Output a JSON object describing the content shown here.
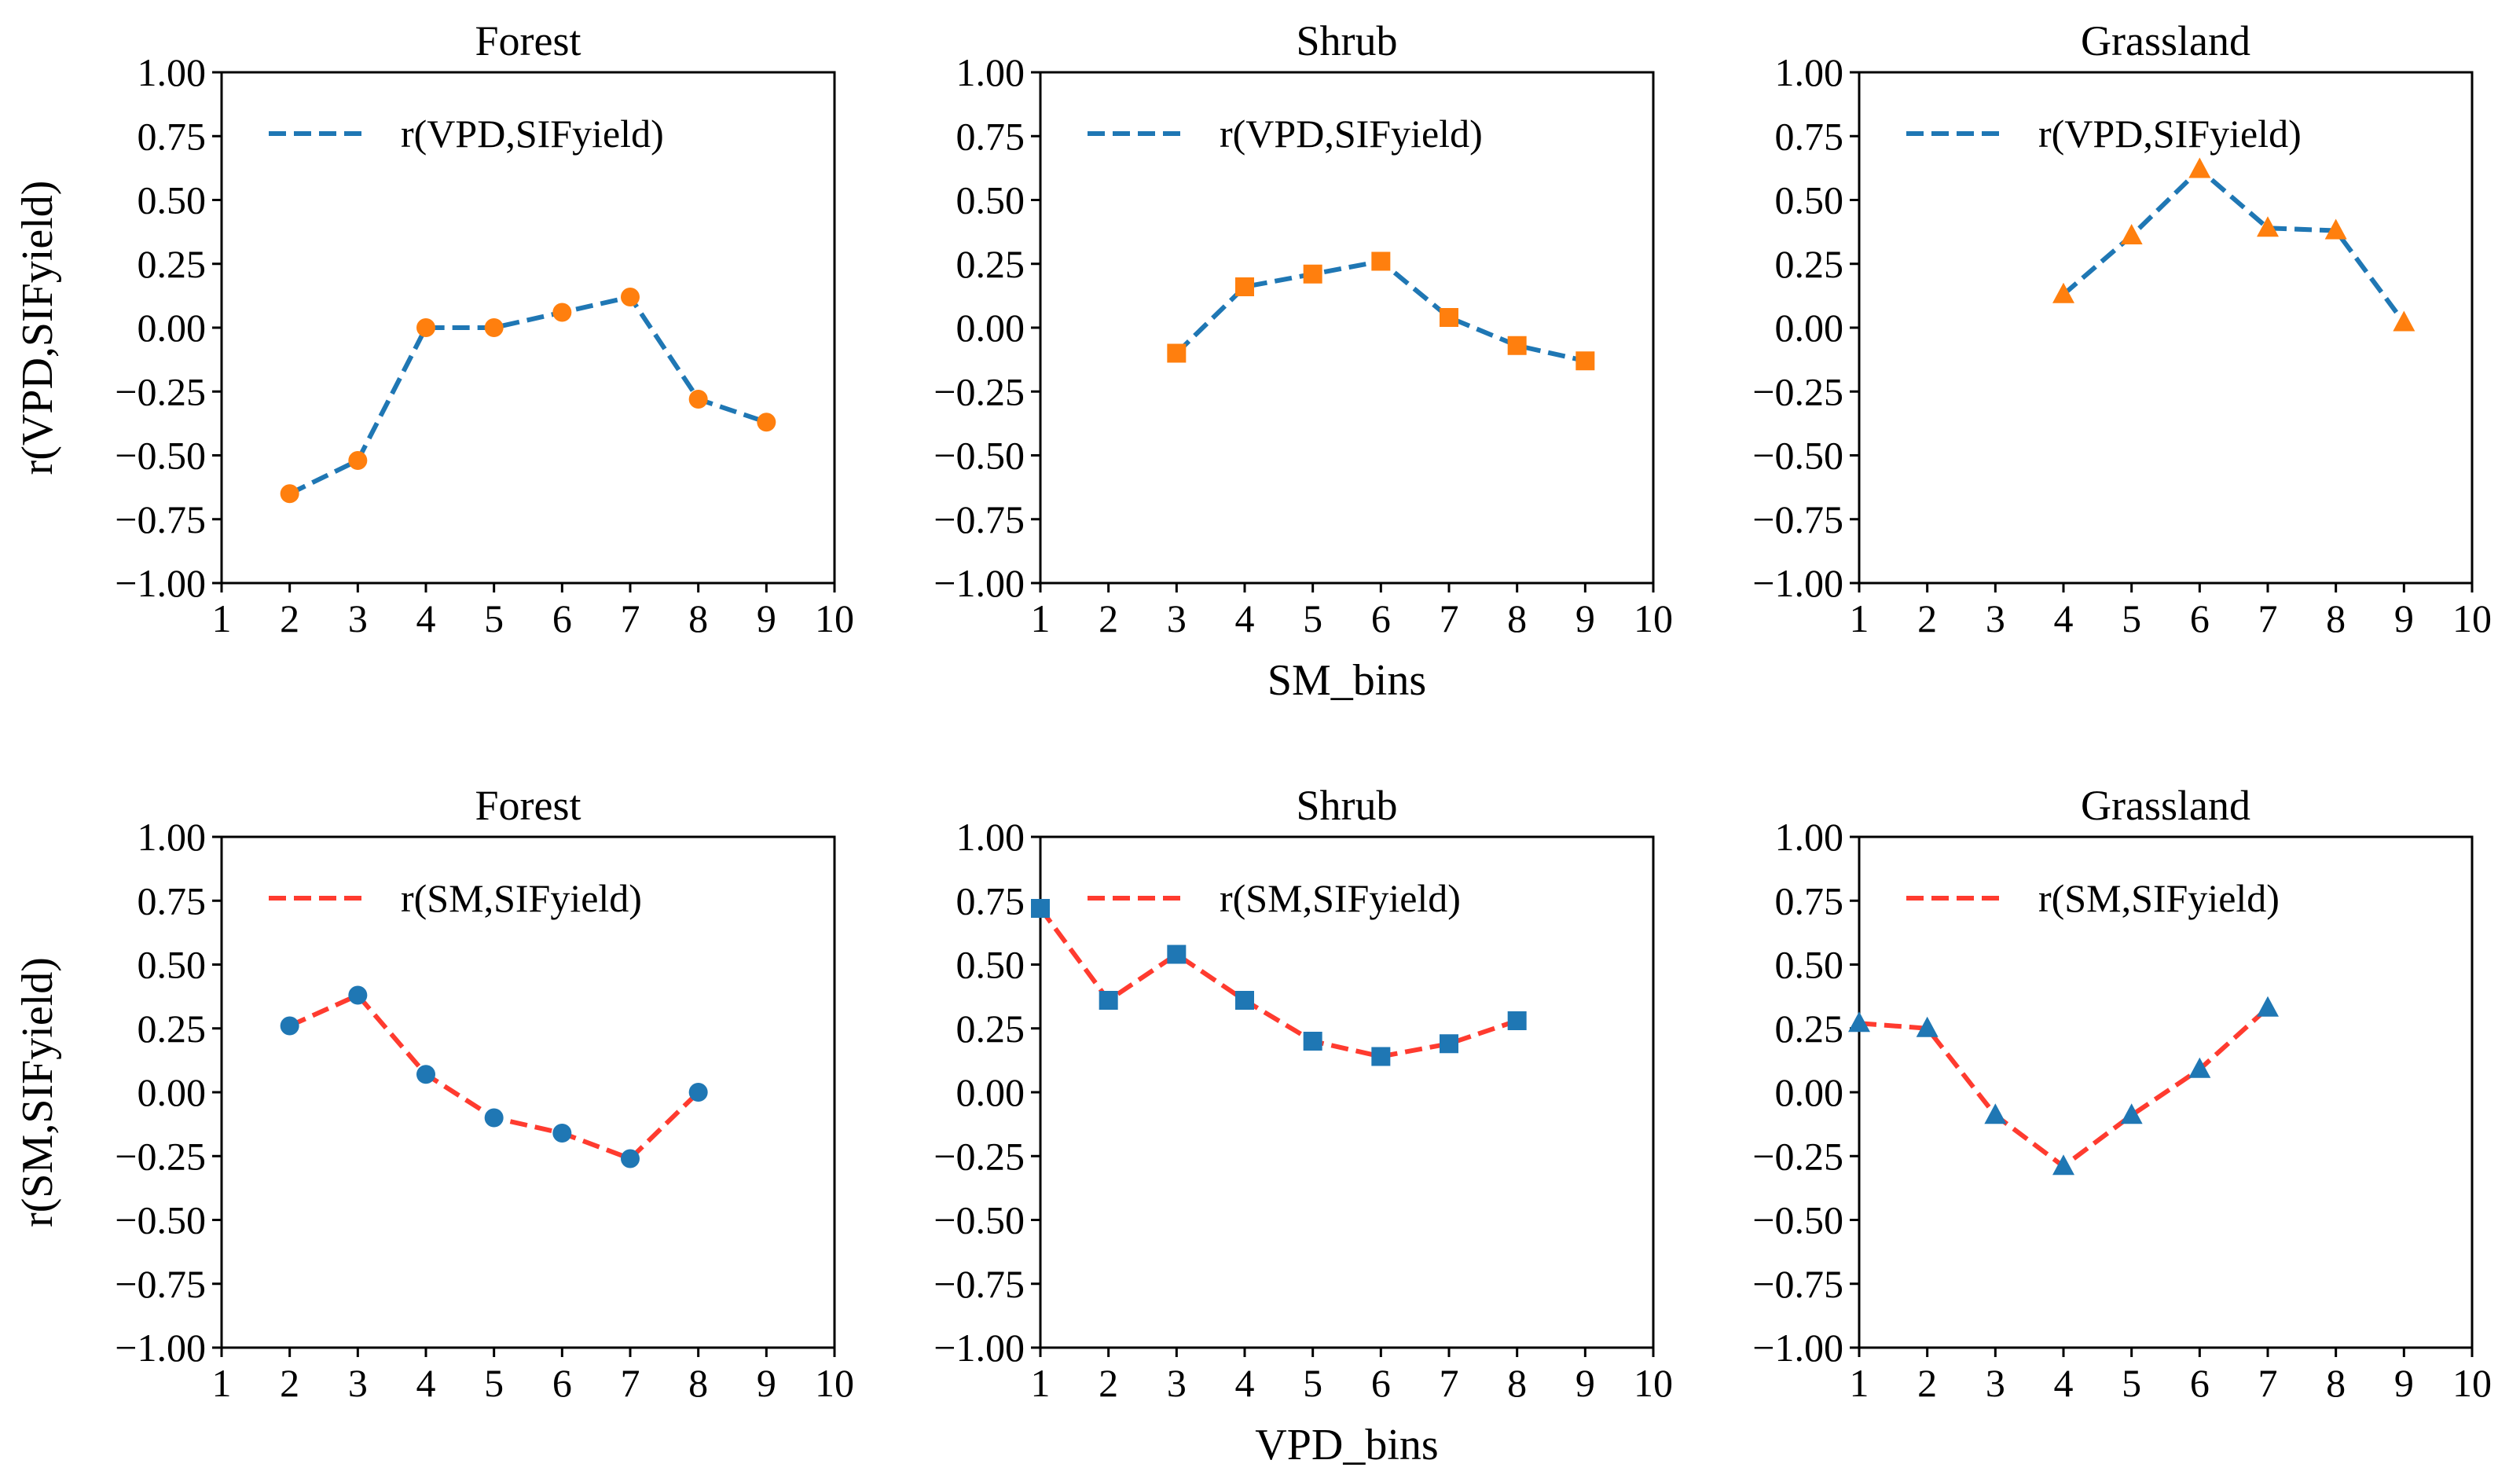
{
  "chart_data": [
    {
      "type": "line",
      "title": "Forest",
      "xlabel": "",
      "ylabel": "r(VPD,SIFyield)",
      "xlim": [
        1,
        10
      ],
      "ylim": [
        -1.0,
        1.0
      ],
      "xticks": [
        "1",
        "2",
        "3",
        "4",
        "5",
        "6",
        "7",
        "8",
        "9",
        "10"
      ],
      "yticks": [
        "−1.00",
        "−0.75",
        "−0.50",
        "−0.25",
        "0.00",
        "0.25",
        "0.50",
        "0.75",
        "1.00"
      ],
      "legend_position": "top-left",
      "series": [
        {
          "name": "r(VPD,SIFyield)",
          "line_color": "#1f77b4",
          "marker_color": "#ff7f0e",
          "marker": "circle",
          "x": [
            2,
            3,
            4,
            5,
            6,
            7,
            8,
            9
          ],
          "y": [
            -0.65,
            -0.52,
            0.0,
            0.0,
            0.06,
            0.12,
            -0.28,
            -0.37
          ]
        }
      ]
    },
    {
      "type": "line",
      "title": "Shrub",
      "xlabel": "SM_bins",
      "ylabel": "",
      "xlim": [
        1,
        10
      ],
      "ylim": [
        -1.0,
        1.0
      ],
      "xticks": [
        "1",
        "2",
        "3",
        "4",
        "5",
        "6",
        "7",
        "8",
        "9",
        "10"
      ],
      "yticks": [
        "−1.00",
        "−0.75",
        "−0.50",
        "−0.25",
        "0.00",
        "0.25",
        "0.50",
        "0.75",
        "1.00"
      ],
      "legend_position": "top-left",
      "series": [
        {
          "name": "r(VPD,SIFyield)",
          "line_color": "#1f77b4",
          "marker_color": "#ff7f0e",
          "marker": "square",
          "x": [
            3,
            4,
            5,
            6,
            7,
            8,
            9
          ],
          "y": [
            -0.1,
            0.16,
            0.21,
            0.26,
            0.04,
            -0.07,
            -0.13
          ]
        }
      ]
    },
    {
      "type": "line",
      "title": "Grassland",
      "xlabel": "",
      "ylabel": "",
      "xlim": [
        1,
        10
      ],
      "ylim": [
        -1.0,
        1.0
      ],
      "xticks": [
        "1",
        "2",
        "3",
        "4",
        "5",
        "6",
        "7",
        "8",
        "9",
        "10"
      ],
      "yticks": [
        "−1.00",
        "−0.75",
        "−0.50",
        "−0.25",
        "0.00",
        "0.25",
        "0.50",
        "0.75",
        "1.00"
      ],
      "legend_position": "top-left",
      "series": [
        {
          "name": "r(VPD,SIFyield)",
          "line_color": "#1f77b4",
          "marker_color": "#ff7f0e",
          "marker": "triangle",
          "x": [
            4,
            5,
            6,
            7,
            8,
            9
          ],
          "y": [
            0.13,
            0.36,
            0.62,
            0.39,
            0.38,
            0.02
          ]
        }
      ]
    },
    {
      "type": "line",
      "title": "Forest",
      "xlabel": "",
      "ylabel": "r(SM,SIFyield)",
      "xlim": [
        1,
        10
      ],
      "ylim": [
        -1.0,
        1.0
      ],
      "xticks": [
        "1",
        "2",
        "3",
        "4",
        "5",
        "6",
        "7",
        "8",
        "9",
        "10"
      ],
      "yticks": [
        "−1.00",
        "−0.75",
        "−0.50",
        "−0.25",
        "0.00",
        "0.25",
        "0.50",
        "0.75",
        "1.00"
      ],
      "legend_position": "top-left",
      "series": [
        {
          "name": "r(SM,SIFyield)",
          "line_color": "#ff3b2f",
          "marker_color": "#1f77b4",
          "marker": "circle",
          "x": [
            2,
            3,
            4,
            5,
            6,
            7,
            8
          ],
          "y": [
            0.26,
            0.38,
            0.07,
            -0.1,
            -0.16,
            -0.26,
            0.0
          ]
        }
      ]
    },
    {
      "type": "line",
      "title": "Shrub",
      "xlabel": "VPD_bins",
      "ylabel": "",
      "xlim": [
        1,
        10
      ],
      "ylim": [
        -1.0,
        1.0
      ],
      "xticks": [
        "1",
        "2",
        "3",
        "4",
        "5",
        "6",
        "7",
        "8",
        "9",
        "10"
      ],
      "yticks": [
        "−1.00",
        "−0.75",
        "−0.50",
        "−0.25",
        "0.00",
        "0.25",
        "0.50",
        "0.75",
        "1.00"
      ],
      "legend_position": "top-left",
      "series": [
        {
          "name": "r(SM,SIFyield)",
          "line_color": "#ff3b2f",
          "marker_color": "#1f77b4",
          "marker": "square",
          "x": [
            1,
            2,
            3,
            4,
            5,
            6,
            7,
            8
          ],
          "y": [
            0.72,
            0.36,
            0.54,
            0.36,
            0.2,
            0.14,
            0.19,
            0.28
          ]
        }
      ]
    },
    {
      "type": "line",
      "title": "Grassland",
      "xlabel": "",
      "ylabel": "",
      "xlim": [
        1,
        10
      ],
      "ylim": [
        -1.0,
        1.0
      ],
      "xticks": [
        "1",
        "2",
        "3",
        "4",
        "5",
        "6",
        "7",
        "8",
        "9",
        "10"
      ],
      "yticks": [
        "−1.00",
        "−0.75",
        "−0.50",
        "−0.25",
        "0.00",
        "0.25",
        "0.50",
        "0.75",
        "1.00"
      ],
      "legend_position": "top-left",
      "series": [
        {
          "name": "r(SM,SIFyield)",
          "line_color": "#ff3b2f",
          "marker_color": "#1f77b4",
          "marker": "triangle",
          "x": [
            1,
            2,
            3,
            4,
            5,
            6,
            7
          ],
          "y": [
            0.27,
            0.25,
            -0.09,
            -0.29,
            -0.09,
            0.09,
            0.33
          ]
        }
      ]
    }
  ]
}
